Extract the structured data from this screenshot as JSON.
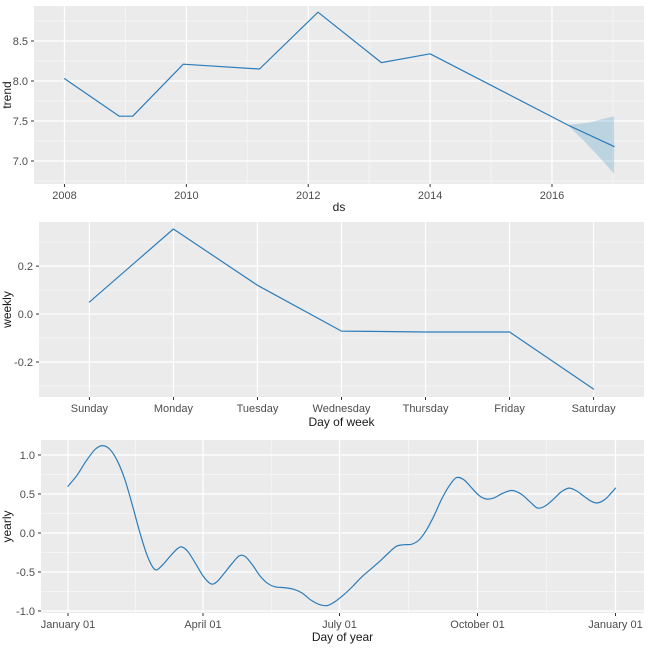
{
  "figure": {
    "description": "Prophet forecast components plot with three panels",
    "background": "#FFFFFF"
  },
  "style": {
    "panel_background": "#EBEBEB",
    "grid_major_color": "#FFFFFF",
    "grid_minor_color": "#F4F4F4",
    "line_color": "#2D7DBA",
    "band_fill_color": "#0072B2",
    "band_opacity": 0.2,
    "tick_mark_color": "#333333",
    "tick_label_color": "#4D4D4D",
    "axis_title_color": "#1A1A1A"
  },
  "chart_data": [
    {
      "id": "trend",
      "type": "line",
      "xlabel": "ds",
      "ylabel": "trend",
      "xlim": [
        2007.5,
        2017.51
      ],
      "ylim": [
        6.7125,
        8.9375
      ],
      "x_ticks": [
        {
          "v": 2008,
          "label": "2008"
        },
        {
          "v": 2010,
          "label": "2010"
        },
        {
          "v": 2012,
          "label": "2012"
        },
        {
          "v": 2014,
          "label": "2014"
        },
        {
          "v": 2016,
          "label": "2016"
        }
      ],
      "x_minor": [
        2009,
        2011,
        2013,
        2015,
        2017
      ],
      "y_ticks": [
        {
          "v": 7.0,
          "label": "7.0"
        },
        {
          "v": 7.5,
          "label": "7.5"
        },
        {
          "v": 8.0,
          "label": "8.0"
        },
        {
          "v": 8.5,
          "label": "8.5"
        }
      ],
      "y_minor": [
        6.75,
        7.25,
        7.75,
        8.25,
        8.75
      ],
      "series": [
        {
          "name": "trend",
          "smooth": false,
          "points": [
            [
              2008.0,
              8.03
            ],
            [
              2008.9,
              7.56
            ],
            [
              2009.12,
              7.56
            ],
            [
              2009.95,
              8.21
            ],
            [
              2011.2,
              8.15
            ],
            [
              2012.16,
              8.86
            ],
            [
              2013.2,
              8.23
            ],
            [
              2014.0,
              8.34
            ],
            [
              2016.26,
              7.45
            ],
            [
              2017.02,
              7.18
            ]
          ]
        }
      ],
      "band": {
        "name": "trend-uncertainty-interval",
        "polygon": [
          [
            2016.26,
            7.45
          ],
          [
            2016.6,
            7.48
          ],
          [
            2017.02,
            7.56
          ],
          [
            2017.02,
            6.84
          ],
          [
            2016.75,
            7.07
          ],
          [
            2016.5,
            7.27
          ],
          [
            2016.35,
            7.38
          ]
        ]
      }
    },
    {
      "id": "weekly",
      "type": "line",
      "xlabel": "Day of week",
      "ylabel": "weekly",
      "categories": [
        "Sunday",
        "Monday",
        "Tuesday",
        "Wednesday",
        "Thursday",
        "Friday",
        "Saturday"
      ],
      "xlim": [
        0.4,
        7.6
      ],
      "ylim": [
        -0.346,
        0.384
      ],
      "x_ticks": [
        {
          "v": 1,
          "label": "Sunday"
        },
        {
          "v": 2,
          "label": "Monday"
        },
        {
          "v": 3,
          "label": "Tuesday"
        },
        {
          "v": 4,
          "label": "Wednesday"
        },
        {
          "v": 5,
          "label": "Thursday"
        },
        {
          "v": 6,
          "label": "Friday"
        },
        {
          "v": 7,
          "label": "Saturday"
        }
      ],
      "x_minor": [],
      "y_ticks": [
        {
          "v": -0.2,
          "label": "-0.2"
        },
        {
          "v": 0.0,
          "label": "0.0"
        },
        {
          "v": 0.2,
          "label": "0.2"
        }
      ],
      "y_minor": [
        0.3,
        0.1,
        -0.1,
        -0.3
      ],
      "series": [
        {
          "name": "weekly",
          "smooth": false,
          "points": [
            [
              1,
              0.05
            ],
            [
              2,
              0.355
            ],
            [
              3,
              0.12
            ],
            [
              4,
              -0.071
            ],
            [
              5,
              -0.075
            ],
            [
              6,
              -0.075
            ],
            [
              7,
              -0.313
            ]
          ]
        }
      ],
      "band": null
    },
    {
      "id": "yearly",
      "type": "line",
      "xlabel": "Day of year",
      "ylabel": "yearly",
      "xlim": [
        -18,
        384
      ],
      "ylim": [
        -1.026,
        1.192
      ],
      "x_ticks": [
        {
          "v": 0,
          "label": "January 01"
        },
        {
          "v": 90,
          "label": "April 01"
        },
        {
          "v": 181,
          "label": "July 01"
        },
        {
          "v": 273,
          "label": "October 01"
        },
        {
          "v": 365,
          "label": "January 01"
        }
      ],
      "x_minor": [
        45,
        135.5,
        227,
        319
      ],
      "y_ticks": [
        {
          "v": -1.0,
          "label": "-1.0"
        },
        {
          "v": -0.5,
          "label": "-0.5"
        },
        {
          "v": 0.0,
          "label": "0.0"
        },
        {
          "v": 0.5,
          "label": "0.5"
        },
        {
          "v": 1.0,
          "label": "1.0"
        }
      ],
      "y_minor": [
        0.75,
        0.25,
        -0.25,
        -0.75
      ],
      "series": [
        {
          "name": "yearly",
          "smooth": true,
          "points": [
            [
              0,
              0.6
            ],
            [
              6,
              0.74
            ],
            [
              12,
              0.92
            ],
            [
              18,
              1.07
            ],
            [
              23,
              1.12
            ],
            [
              28,
              1.07
            ],
            [
              33,
              0.92
            ],
            [
              38,
              0.68
            ],
            [
              43,
              0.35
            ],
            [
              48,
              0.0
            ],
            [
              53,
              -0.3
            ],
            [
              58,
              -0.47
            ],
            [
              63,
              -0.41
            ],
            [
              68,
              -0.3
            ],
            [
              73,
              -0.2
            ],
            [
              76,
              -0.18
            ],
            [
              80,
              -0.24
            ],
            [
              85,
              -0.39
            ],
            [
              90,
              -0.55
            ],
            [
              95,
              -0.65
            ],
            [
              99,
              -0.63
            ],
            [
              104,
              -0.52
            ],
            [
              109,
              -0.4
            ],
            [
              114,
              -0.295
            ],
            [
              118,
              -0.3
            ],
            [
              123,
              -0.41
            ],
            [
              128,
              -0.55
            ],
            [
              133,
              -0.645
            ],
            [
              138,
              -0.69
            ],
            [
              144,
              -0.7
            ],
            [
              150,
              -0.72
            ],
            [
              156,
              -0.77
            ],
            [
              162,
              -0.86
            ],
            [
              168,
              -0.92
            ],
            [
              173,
              -0.93
            ],
            [
              178,
              -0.88
            ],
            [
              184,
              -0.79
            ],
            [
              190,
              -0.68
            ],
            [
              196,
              -0.56
            ],
            [
              202,
              -0.46
            ],
            [
              208,
              -0.36
            ],
            [
              214,
              -0.25
            ],
            [
              219,
              -0.17
            ],
            [
              224,
              -0.15
            ],
            [
              229,
              -0.145
            ],
            [
              234,
              -0.09
            ],
            [
              239,
              0.04
            ],
            [
              244,
              0.22
            ],
            [
              249,
              0.43
            ],
            [
              254,
              0.6
            ],
            [
              259,
              0.71
            ],
            [
              264,
              0.68
            ],
            [
              269,
              0.58
            ],
            [
              274,
              0.48
            ],
            [
              279,
              0.435
            ],
            [
              284,
              0.45
            ],
            [
              290,
              0.51
            ],
            [
              296,
              0.545
            ],
            [
              302,
              0.5
            ],
            [
              308,
              0.4
            ],
            [
              313,
              0.32
            ],
            [
              318,
              0.345
            ],
            [
              324,
              0.44
            ],
            [
              329,
              0.53
            ],
            [
              334,
              0.575
            ],
            [
              339,
              0.54
            ],
            [
              344,
              0.47
            ],
            [
              349,
              0.405
            ],
            [
              353,
              0.385
            ],
            [
              358,
              0.43
            ],
            [
              362,
              0.51
            ],
            [
              365,
              0.575
            ]
          ]
        }
      ],
      "band": null
    }
  ]
}
